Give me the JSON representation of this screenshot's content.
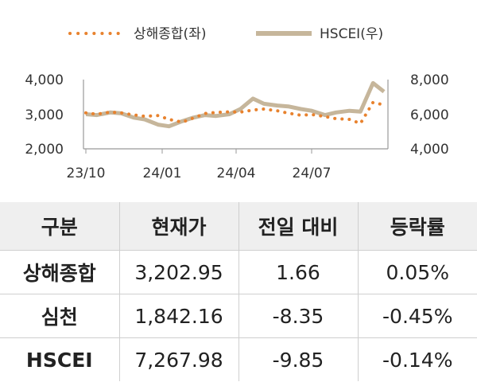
{
  "chart_data": {
    "type": "line",
    "x_ticks": [
      "23/10",
      "24/01",
      "24/04",
      "24/07"
    ],
    "y_left": {
      "ticks": [
        "2,000",
        "3,000",
        "4,000"
      ],
      "range": [
        2000,
        4000
      ]
    },
    "y_right": {
      "ticks": [
        "4,000",
        "6,000",
        "8,000"
      ],
      "range": [
        4000,
        8000
      ]
    },
    "legend_position": "top",
    "series": [
      {
        "name": "상해종합(좌)",
        "axis": "left",
        "style": "dotted",
        "color": "#e8822e",
        "x": [
          "2023-10-01",
          "2023-10-15",
          "2023-11-01",
          "2023-11-15",
          "2023-12-01",
          "2023-12-15",
          "2024-01-01",
          "2024-01-15",
          "2024-02-01",
          "2024-02-15",
          "2024-03-01",
          "2024-03-15",
          "2024-04-01",
          "2024-04-15",
          "2024-05-01",
          "2024-05-15",
          "2024-06-01",
          "2024-06-15",
          "2024-07-01",
          "2024-07-15",
          "2024-08-01",
          "2024-08-15",
          "2024-09-01",
          "2024-09-15",
          "2024-10-01",
          "2024-10-15"
        ],
        "values": [
          3040,
          3000,
          3060,
          3040,
          2980,
          2940,
          2960,
          2850,
          2770,
          2890,
          3020,
          3050,
          3070,
          3060,
          3120,
          3150,
          3100,
          3030,
          2970,
          2990,
          2930,
          2870,
          2850,
          2730,
          3340,
          3270
        ]
      },
      {
        "name": "HSCEI(우)",
        "axis": "right",
        "style": "solid",
        "color": "#c6b69b",
        "x": [
          "2023-10-01",
          "2023-10-15",
          "2023-11-01",
          "2023-11-15",
          "2023-12-01",
          "2023-12-15",
          "2024-01-01",
          "2024-01-15",
          "2024-02-01",
          "2024-02-15",
          "2024-03-01",
          "2024-03-15",
          "2024-04-01",
          "2024-04-15",
          "2024-05-01",
          "2024-05-15",
          "2024-06-01",
          "2024-06-15",
          "2024-07-01",
          "2024-07-15",
          "2024-08-01",
          "2024-08-15",
          "2024-09-01",
          "2024-09-15",
          "2024-10-01",
          "2024-10-15"
        ],
        "values": [
          6000,
          5950,
          6100,
          6050,
          5800,
          5700,
          5400,
          5300,
          5600,
          5800,
          5950,
          5900,
          6000,
          6300,
          6900,
          6600,
          6500,
          6450,
          6300,
          6200,
          5950,
          6100,
          6200,
          6150,
          7800,
          7300
        ]
      }
    ]
  },
  "table": {
    "headers": [
      "구분",
      "현재가",
      "전일 대비",
      "등락률"
    ],
    "rows": [
      [
        "상해종합",
        "3,202.95",
        "1.66",
        "0.05%"
      ],
      [
        "심천",
        "1,842.16",
        "-8.35",
        "-0.45%"
      ],
      [
        "HSCEI",
        "7,267.98",
        "-9.85",
        "-0.14%"
      ]
    ]
  }
}
